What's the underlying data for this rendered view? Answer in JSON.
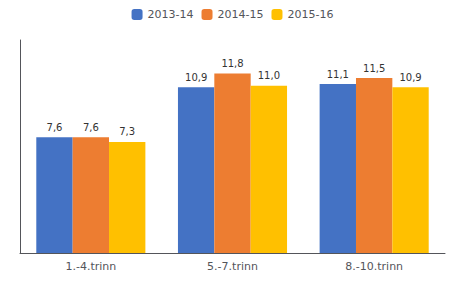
{
  "chart_data": {
    "type": "bar",
    "categories": [
      "1.-4.trinn",
      "5.-7.trinn",
      "8.-10.trinn"
    ],
    "series": [
      {
        "name": "2013-14",
        "color": "#4472C4",
        "values": [
          7.6,
          10.9,
          11.1
        ],
        "value_labels": [
          "7,6",
          "10,9",
          "11,1"
        ]
      },
      {
        "name": "2014-15",
        "color": "#ED7D31",
        "values": [
          7.6,
          11.8,
          11.5
        ],
        "value_labels": [
          "7,6",
          "11,8",
          "11,5"
        ]
      },
      {
        "name": "2015-16",
        "color": "#FFC000",
        "values": [
          7.3,
          11.0,
          10.9
        ],
        "value_labels": [
          "7,3",
          "11,0",
          "10,9"
        ]
      }
    ],
    "ylim": [
      0,
      14
    ],
    "grid": false,
    "legend": "top",
    "data_labels": true,
    "tick_labels": "x"
  }
}
